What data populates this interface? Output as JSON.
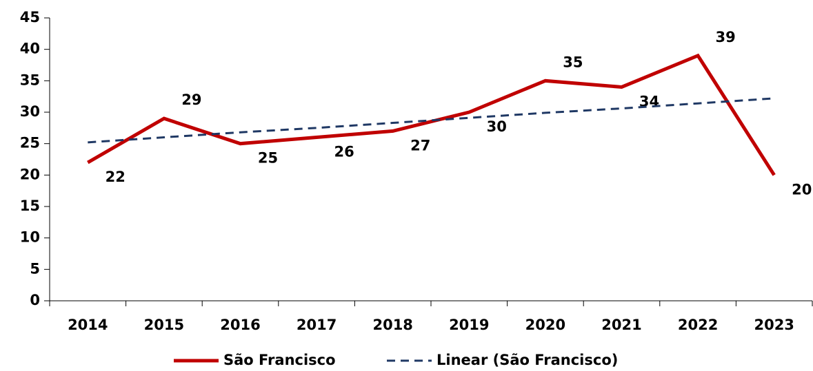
{
  "chart_data": {
    "type": "line",
    "categories": [
      "2014",
      "2015",
      "2016",
      "2017",
      "2018",
      "2019",
      "2020",
      "2021",
      "2022",
      "2023"
    ],
    "series": [
      {
        "name": "São Francisco",
        "color": "#c00000",
        "values": [
          22,
          29,
          25,
          26,
          27,
          30,
          35,
          34,
          39,
          20
        ]
      },
      {
        "name": "Linear (São Francisco)",
        "color": "#1f3864",
        "dashed": true,
        "values": [
          25.2,
          26.0,
          26.8,
          27.5,
          28.3,
          29.1,
          29.9,
          30.6,
          31.4,
          32.2
        ]
      }
    ],
    "data_labels": [
      true,
      false
    ],
    "ylim": [
      0,
      45
    ],
    "yticks": [
      0,
      5,
      10,
      15,
      20,
      25,
      30,
      35,
      40,
      45
    ],
    "grid": false,
    "legend": "bottom"
  }
}
